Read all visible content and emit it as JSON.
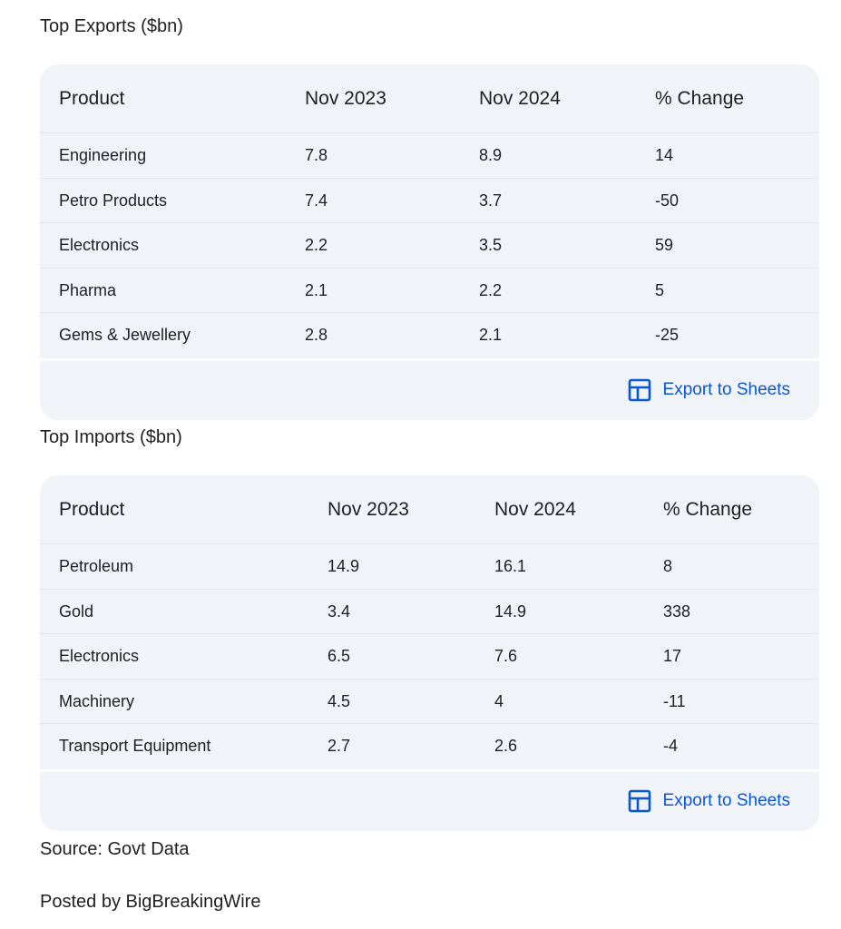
{
  "tables": [
    {
      "title": "Top Exports ($bn)",
      "header": [
        "Product",
        "Nov 2023",
        "Nov 2024",
        "% Change"
      ],
      "rows": [
        [
          "Engineering",
          "7.8",
          "8.9",
          "14"
        ],
        [
          "Petro Products",
          "7.4",
          "3.7",
          "-50"
        ],
        [
          "Electronics",
          "2.2",
          "3.5",
          "59"
        ],
        [
          "Pharma",
          "2.1",
          "2.2",
          "5"
        ],
        [
          "Gems & Jewellery",
          "2.8",
          "2.1",
          "-25"
        ]
      ],
      "button": "Export to Sheets"
    },
    {
      "title": "Top Imports ($bn)",
      "header": [
        "Product",
        "Nov 2023",
        "Nov 2024",
        "% Change"
      ],
      "rows": [
        [
          "Petroleum",
          "14.9",
          "16.1",
          "8"
        ],
        [
          "Gold",
          "3.4",
          "14.9",
          "338"
        ],
        [
          "Electronics",
          "6.5",
          "7.6",
          "17"
        ],
        [
          "Machinery",
          "4.5",
          "4",
          "-11"
        ],
        [
          "Transport Equipment",
          "2.7",
          "2.6",
          "-4"
        ]
      ],
      "button": "Export to Sheets"
    }
  ],
  "source": "Source: Govt Data",
  "posted": "Posted by BigBreakingWire"
}
